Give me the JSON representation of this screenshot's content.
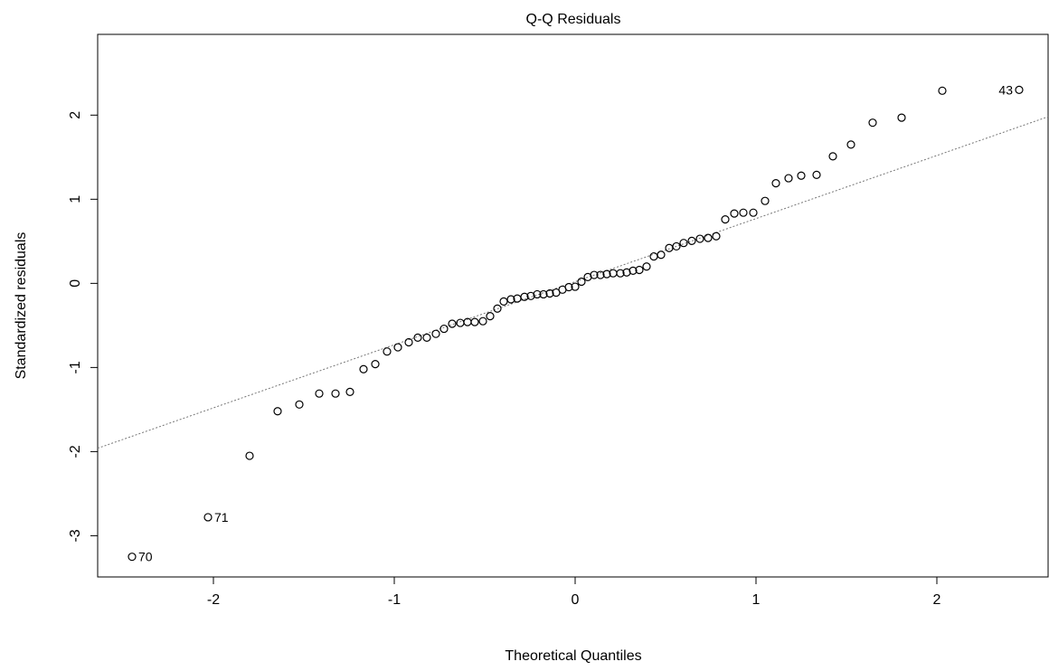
{
  "chart_data": {
    "type": "scatter",
    "title": "Q-Q Residuals",
    "x_label": "Theoretical Quantiles",
    "y_label": "Standardized residuals",
    "x": [
      -2.45,
      -2.03,
      -1.8,
      -1.645,
      -1.525,
      -1.415,
      -1.325,
      -1.245,
      -1.17,
      -1.105,
      -1.04,
      -0.98,
      -0.92,
      -0.87,
      -0.82,
      -0.77,
      -0.725,
      -0.68,
      -0.635,
      -0.595,
      -0.555,
      -0.51,
      -0.47,
      -0.43,
      -0.395,
      -0.355,
      -0.32,
      -0.28,
      -0.245,
      -0.21,
      -0.175,
      -0.14,
      -0.105,
      -0.07,
      -0.035,
      0.0,
      0.035,
      0.07,
      0.105,
      0.14,
      0.175,
      0.21,
      0.25,
      0.285,
      0.32,
      0.355,
      0.395,
      0.435,
      0.475,
      0.52,
      0.56,
      0.6,
      0.645,
      0.69,
      0.735,
      0.78,
      0.83,
      0.88,
      0.93,
      0.985,
      1.05,
      1.11,
      1.18,
      1.25,
      1.335,
      1.425,
      1.525,
      1.645,
      1.805,
      2.03,
      2.455
    ],
    "values": [
      -3.25,
      -2.78,
      -2.05,
      -1.52,
      -1.44,
      -1.31,
      -1.31,
      -1.29,
      -1.02,
      -0.96,
      -0.81,
      -0.76,
      -0.7,
      -0.645,
      -0.645,
      -0.6,
      -0.54,
      -0.48,
      -0.47,
      -0.46,
      -0.46,
      -0.45,
      -0.39,
      -0.3,
      -0.215,
      -0.19,
      -0.18,
      -0.16,
      -0.15,
      -0.13,
      -0.13,
      -0.12,
      -0.11,
      -0.075,
      -0.045,
      -0.04,
      0.02,
      0.075,
      0.1,
      0.1,
      0.11,
      0.12,
      0.12,
      0.13,
      0.15,
      0.16,
      0.2,
      0.32,
      0.34,
      0.42,
      0.44,
      0.48,
      0.505,
      0.53,
      0.54,
      0.56,
      0.76,
      0.83,
      0.84,
      0.84,
      0.98,
      1.19,
      1.25,
      1.28,
      1.29,
      1.51,
      1.65,
      1.91,
      1.97,
      2.29,
      2.3
    ],
    "point_labels": [
      "70",
      "71",
      null,
      null,
      null,
      null,
      null,
      null,
      null,
      null,
      null,
      null,
      null,
      null,
      null,
      null,
      null,
      null,
      null,
      null,
      null,
      null,
      null,
      null,
      null,
      null,
      null,
      null,
      null,
      null,
      null,
      null,
      null,
      null,
      null,
      null,
      null,
      null,
      null,
      null,
      null,
      null,
      null,
      null,
      null,
      null,
      null,
      null,
      null,
      null,
      null,
      null,
      null,
      null,
      null,
      null,
      null,
      null,
      null,
      null,
      null,
      null,
      null,
      null,
      null,
      null,
      null,
      null,
      null,
      null,
      "43"
    ],
    "reference_line": {
      "intercept": 0.02,
      "slope": 0.75
    },
    "color": "#000000",
    "line_color": "#777777",
    "xlim": [
      -2.64,
      2.62
    ],
    "ylim": [
      -3.49,
      2.96
    ],
    "xticks": [
      -2,
      -1,
      0,
      1,
      2
    ],
    "yticks": [
      -3,
      -2,
      -1,
      0,
      1,
      2
    ]
  }
}
